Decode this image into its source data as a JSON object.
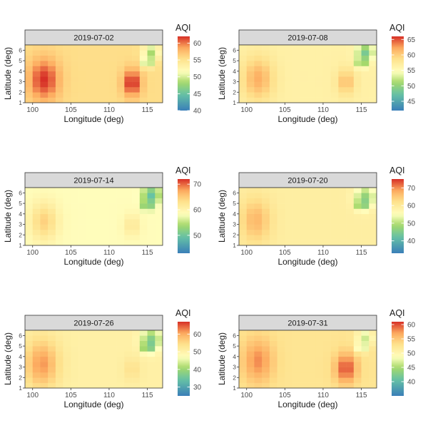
{
  "chart_data": {
    "type": "heatmap",
    "xlabel": "Longitude (deg)",
    "ylabel": "Latitude (deg)",
    "legend_title": "AQI",
    "x_ticks": [
      100,
      105,
      110,
      115
    ],
    "y_ticks": [
      1,
      2,
      3,
      4,
      5,
      6
    ],
    "xlim": [
      99,
      117
    ],
    "ylim": [
      1,
      6.5
    ],
    "colors": {
      "panel_strip": "#d9d9d9",
      "low": "#3a7fb8",
      "mid_low": "#a6d96a",
      "mid": "#ffffbf",
      "mid_high": "#fdae61",
      "high": "#d73027"
    },
    "panels": [
      {
        "date": "2019-07-02",
        "colorbar_range": [
          40,
          62
        ],
        "colorbar_ticks": [
          40,
          45,
          50,
          55,
          60
        ],
        "field": {
          "base": 55.5,
          "hotspots": [
            {
              "lon": 101.5,
              "lat": 3.2,
              "amp": 6.5,
              "rx": 2.0,
              "ry": 2.0
            },
            {
              "lon": 113.0,
              "lat": 2.9,
              "amp": 7.0,
              "rx": 1.2,
              "ry": 1.3
            }
          ],
          "lows": [
            {
              "lon": 115.0,
              "lat": 4.8,
              "amp": 16.0,
              "rx": 0.45,
              "ry": 0.45
            },
            {
              "lon": 115.5,
              "lat": 5.8,
              "amp": 7.0,
              "rx": 1.1,
              "ry": 0.8
            }
          ]
        }
      },
      {
        "date": "2019-07-08",
        "colorbar_range": [
          42,
          66
        ],
        "colorbar_ticks": [
          45,
          50,
          55,
          60,
          65
        ],
        "field": {
          "base": 56.5,
          "hotspots": [
            {
              "lon": 101.5,
              "lat": 3.3,
              "amp": 5.5,
              "rx": 2.0,
              "ry": 2.0
            },
            {
              "lon": 113.0,
              "lat": 3.0,
              "amp": 4.5,
              "rx": 1.2,
              "ry": 1.2
            }
          ],
          "lows": [
            {
              "lon": 115.0,
              "lat": 4.8,
              "amp": 14.0,
              "rx": 0.45,
              "ry": 0.45
            },
            {
              "lon": 115.5,
              "lat": 5.8,
              "amp": 8.0,
              "rx": 1.1,
              "ry": 0.8
            }
          ]
        }
      },
      {
        "date": "2019-07-14",
        "colorbar_range": [
          43,
          72
        ],
        "colorbar_ticks": [
          50,
          60,
          70
        ],
        "field": {
          "base": 58.5,
          "hotspots": [
            {
              "lon": 101.5,
              "lat": 3.3,
              "amp": 6.0,
              "rx": 1.8,
              "ry": 1.8
            },
            {
              "lon": 113.0,
              "lat": 2.9,
              "amp": 3.5,
              "rx": 1.1,
              "ry": 1.1
            }
          ],
          "lows": [
            {
              "lon": 115.0,
              "lat": 4.8,
              "amp": 16.0,
              "rx": 0.45,
              "ry": 0.45
            },
            {
              "lon": 115.5,
              "lat": 5.8,
              "amp": 9.0,
              "rx": 1.1,
              "ry": 0.8
            }
          ]
        }
      },
      {
        "date": "2019-07-20",
        "colorbar_range": [
          33,
          75
        ],
        "colorbar_ticks": [
          40,
          50,
          60,
          70
        ],
        "field": {
          "base": 59.0,
          "hotspots": [
            {
              "lon": 101.2,
              "lat": 3.4,
              "amp": 8.0,
              "rx": 2.0,
              "ry": 2.1
            }
          ],
          "lows": [
            {
              "lon": 115.0,
              "lat": 4.8,
              "amp": 22.0,
              "rx": 0.45,
              "ry": 0.45
            },
            {
              "lon": 115.5,
              "lat": 5.6,
              "amp": 12.0,
              "rx": 1.3,
              "ry": 1.0
            }
          ]
        }
      },
      {
        "date": "2019-07-26",
        "colorbar_range": [
          25,
          67
        ],
        "colorbar_ticks": [
          30,
          40,
          50,
          60
        ],
        "field": {
          "base": 50.5,
          "hotspots": [
            {
              "lon": 101.2,
              "lat": 3.3,
              "amp": 11.0,
              "rx": 2.2,
              "ry": 2.3
            },
            {
              "lon": 113.0,
              "lat": 2.8,
              "amp": 3.5,
              "rx": 1.1,
              "ry": 1.1
            }
          ],
          "lows": [
            {
              "lon": 115.0,
              "lat": 4.8,
              "amp": 22.0,
              "rx": 0.45,
              "ry": 0.45
            },
            {
              "lon": 115.5,
              "lat": 5.6,
              "amp": 13.0,
              "rx": 1.3,
              "ry": 1.0
            }
          ]
        }
      },
      {
        "date": "2019-07-31",
        "colorbar_range": [
          35,
          61
        ],
        "colorbar_ticks": [
          40,
          45,
          50,
          55,
          60
        ],
        "field": {
          "base": 52.5,
          "hotspots": [
            {
              "lon": 101.5,
              "lat": 3.6,
              "amp": 5.5,
              "rx": 2.1,
              "ry": 2.2
            },
            {
              "lon": 113.0,
              "lat": 2.9,
              "amp": 7.5,
              "rx": 1.5,
              "ry": 1.5
            }
          ],
          "lows": [
            {
              "lon": 115.0,
              "lat": 4.8,
              "amp": 13.0,
              "rx": 0.45,
              "ry": 0.45
            },
            {
              "lon": 115.5,
              "lat": 5.8,
              "amp": 6.0,
              "rx": 1.1,
              "ry": 0.8
            }
          ]
        }
      }
    ]
  }
}
